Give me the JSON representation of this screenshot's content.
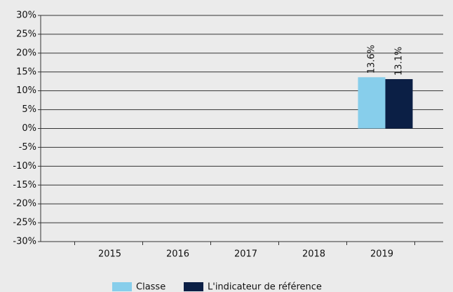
{
  "chart_data": {
    "type": "bar",
    "categories": [
      "2015",
      "2016",
      "2017",
      "2018",
      "2019"
    ],
    "series": [
      {
        "name": "Classe",
        "color": "#87ceeb",
        "values": [
          null,
          null,
          null,
          null,
          13.6
        ],
        "value_labels": [
          null,
          null,
          null,
          null,
          "13.6%"
        ]
      },
      {
        "name": "L'indicateur de référence",
        "color": "#0b1f45",
        "values": [
          null,
          null,
          null,
          null,
          13.1
        ],
        "value_labels": [
          null,
          null,
          null,
          null,
          "13.1%"
        ]
      }
    ],
    "ylim": [
      -30,
      30
    ],
    "yticks": [
      {
        "value": -30,
        "label": "-30%"
      },
      {
        "value": -25,
        "label": "-25%"
      },
      {
        "value": -20,
        "label": "-20%"
      },
      {
        "value": -15,
        "label": "-15%"
      },
      {
        "value": -10,
        "label": "-10%"
      },
      {
        "value": -5,
        "label": "-5%"
      },
      {
        "value": 0,
        "label": "0%"
      },
      {
        "value": 5,
        "label": "5%"
      },
      {
        "value": 10,
        "label": "10%"
      },
      {
        "value": 15,
        "label": "15%"
      },
      {
        "value": 20,
        "label": "20%"
      },
      {
        "value": 25,
        "label": "25%"
      },
      {
        "value": 30,
        "label": "30%"
      }
    ],
    "grid": true,
    "legend": "bottom"
  }
}
